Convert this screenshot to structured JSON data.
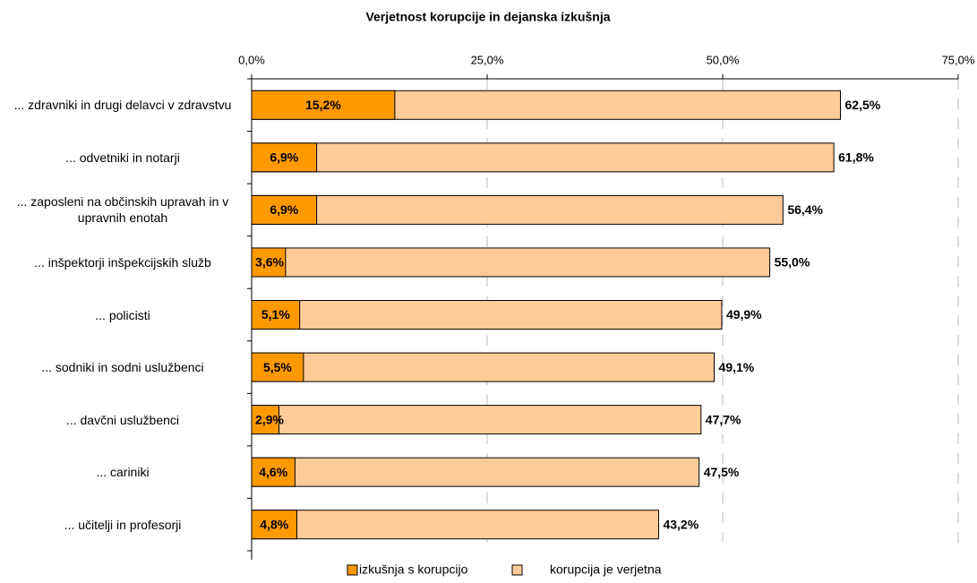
{
  "chart_data": {
    "type": "bar",
    "orientation": "horizontal",
    "title": "Verjetnost korupcije in dejanska izkušnja",
    "categories": [
      "... zdravniki in drugi delavci v zdravstvu",
      "... odvetniki in notarji",
      "... zaposleni na občinskih upravah in v upravnih enotah",
      "... inšpektorji inšpekcijskih služb",
      "... policisti",
      "... sodniki in sodni uslužbenci",
      "... davčni uslužbenci",
      "... cariniki",
      "... učitelji in profesorji"
    ],
    "series": [
      {
        "name": "izkušnja s korupcijo",
        "color": "#ff9900",
        "values": [
          15.2,
          6.9,
          6.9,
          3.6,
          5.1,
          5.5,
          2.9,
          4.6,
          4.8
        ],
        "value_labels": [
          "15,2%",
          "6,9%",
          "6,9%",
          "3,6%",
          "5,1%",
          "5,5%",
          "2,9%",
          "4,6%",
          "4,8%"
        ]
      },
      {
        "name": "korupcija je verjetna",
        "color": "#ffcc99",
        "values": [
          62.5,
          61.8,
          56.4,
          55.0,
          49.9,
          49.1,
          47.7,
          47.5,
          43.2
        ],
        "value_labels": [
          "62,5%",
          "61,8%",
          "56,4%",
          "55,0%",
          "49,9%",
          "49,1%",
          "47,7%",
          "47,5%",
          "43,2%"
        ]
      }
    ],
    "xlim": [
      0,
      75
    ],
    "xticks": [
      {
        "value": 0,
        "label": "0,0%"
      },
      {
        "value": 25,
        "label": "25,0%"
      },
      {
        "value": 50,
        "label": "50,0%"
      },
      {
        "value": 75,
        "label": "75,0%"
      }
    ],
    "grid": true,
    "legend": "bottom"
  }
}
